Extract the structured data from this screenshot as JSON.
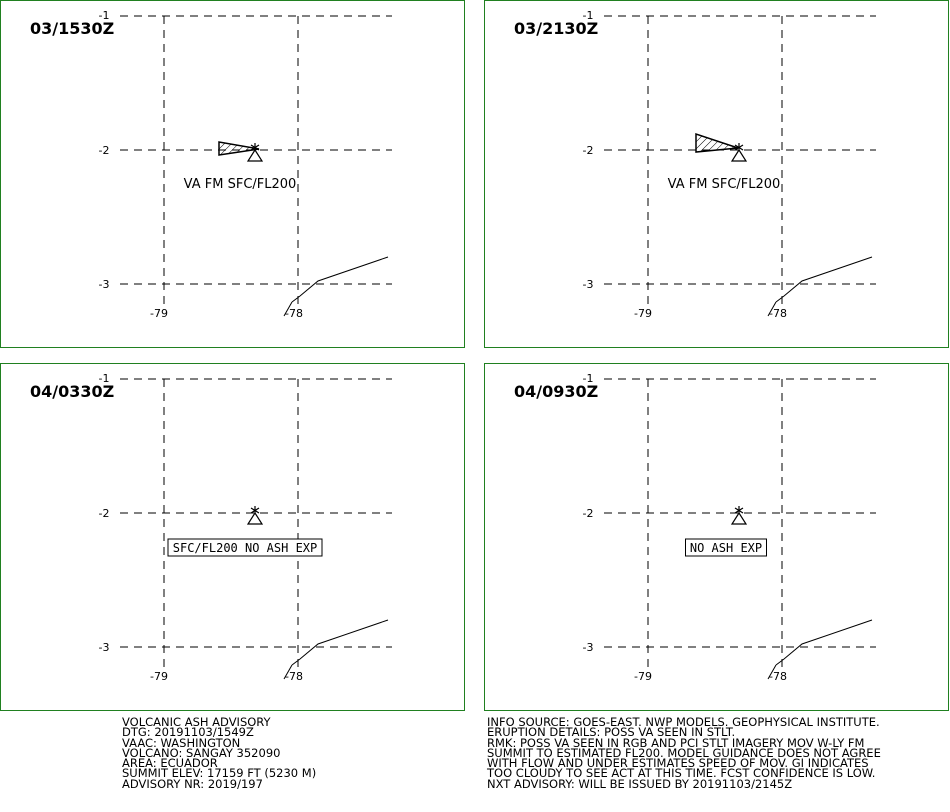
{
  "colors": {
    "frame": "#208020",
    "grid": "#000000",
    "ink": "#000000",
    "background": "#ffffff"
  },
  "icons": {
    "volcano": "volcano-triangle-icon"
  },
  "panels": [
    {
      "timestamp": "03/1530Z",
      "lat_labels": [
        "-1",
        "-2",
        "-3"
      ],
      "lon_labels": [
        "-79",
        "-78"
      ],
      "ash_plume": true,
      "label_style": "plain",
      "label": "VA FM SFC/FL200"
    },
    {
      "timestamp": "03/2130Z",
      "lat_labels": [
        "-1",
        "-2",
        "-3"
      ],
      "lon_labels": [
        "-79",
        "-78"
      ],
      "ash_plume": true,
      "label_style": "plain",
      "label": "VA FM SFC/FL200"
    },
    {
      "timestamp": "04/0330Z",
      "lat_labels": [
        "-1",
        "-2",
        "-3"
      ],
      "lon_labels": [
        "-79",
        "-78"
      ],
      "ash_plume": false,
      "label_style": "boxed",
      "label": "SFC/FL200 NO ASH EXP"
    },
    {
      "timestamp": "04/0930Z",
      "lat_labels": [
        "-1",
        "-2",
        "-3"
      ],
      "lon_labels": [
        "-79",
        "-78"
      ],
      "ash_plume": false,
      "label_style": "boxed",
      "label": "NO ASH EXP"
    }
  ],
  "advisory_left": [
    "VOLCANIC ASH ADVISORY",
    "DTG: 20191103/1549Z",
    "VAAC: WASHINGTON",
    "VOLCANO: SANGAY 352090",
    "AREA: ECUADOR",
    "SUMMIT ELEV: 17159 FT (5230 M)",
    "ADVISORY NR: 2019/197"
  ],
  "advisory_right": [
    "INFO SOURCE: GOES-EAST. NWP MODELS. GEOPHYSICAL INSTITUTE.",
    "ERUPTION DETAILS: POSS VA SEEN IN STLT.",
    "RMK: POSS VA SEEN IN RGB AND PCI STLT IMAGERY MOV W-LY FM",
    "SUMMIT TO ESTIMATED FL200. MODEL GUIDANCE DOES NOT AGREE",
    "WITH FLOW AND UNDER ESTIMATES SPEED OF MOV. GI INDICATES",
    "TOO CLOUDY TO SEE ACT AT THIS TIME. FCST CONFIDENCE IS LOW.",
    "NXT ADVISORY: WILL BE ISSUED BY 20191103/2145Z"
  ]
}
